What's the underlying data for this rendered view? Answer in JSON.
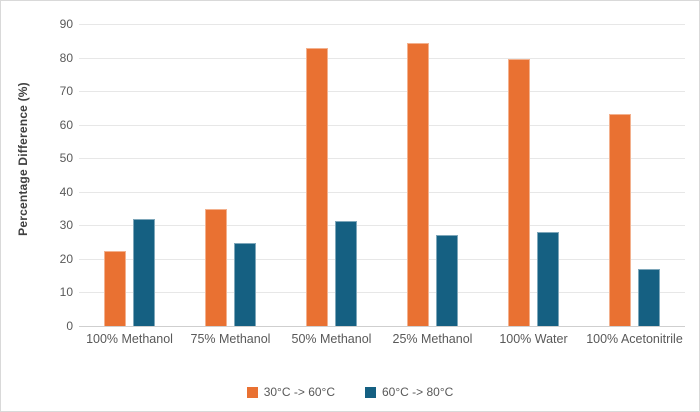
{
  "frame": {
    "background_color": "#ffffff",
    "border_color": "#d9d9d9"
  },
  "chart_data": {
    "type": "bar",
    "title": "",
    "xlabel": "",
    "ylabel": "Percentage Difference (%)",
    "ylim": [
      0,
      90
    ],
    "ytick_step": 10,
    "grid": true,
    "legend_position": "bottom",
    "categories": [
      "100% Methanol",
      "75% Methanol",
      "50% Methanol",
      "25% Methanol",
      "100% Water",
      "100% Acetonitrile"
    ],
    "series": [
      {
        "name": "30°C -> 60°C",
        "color": "#E97132",
        "values": [
          22.4,
          34.9,
          83.0,
          84.3,
          79.5,
          63.2
        ]
      },
      {
        "name": "60°C -> 80°C",
        "color": "#156082",
        "values": [
          31.9,
          24.7,
          31.4,
          27.1,
          27.9,
          17.1
        ]
      }
    ],
    "grid_color": "#e7e7e7",
    "axis_line_color": "#cfcfcf",
    "tick_text_color": "#595959",
    "axis_title_color": "#404040"
  }
}
